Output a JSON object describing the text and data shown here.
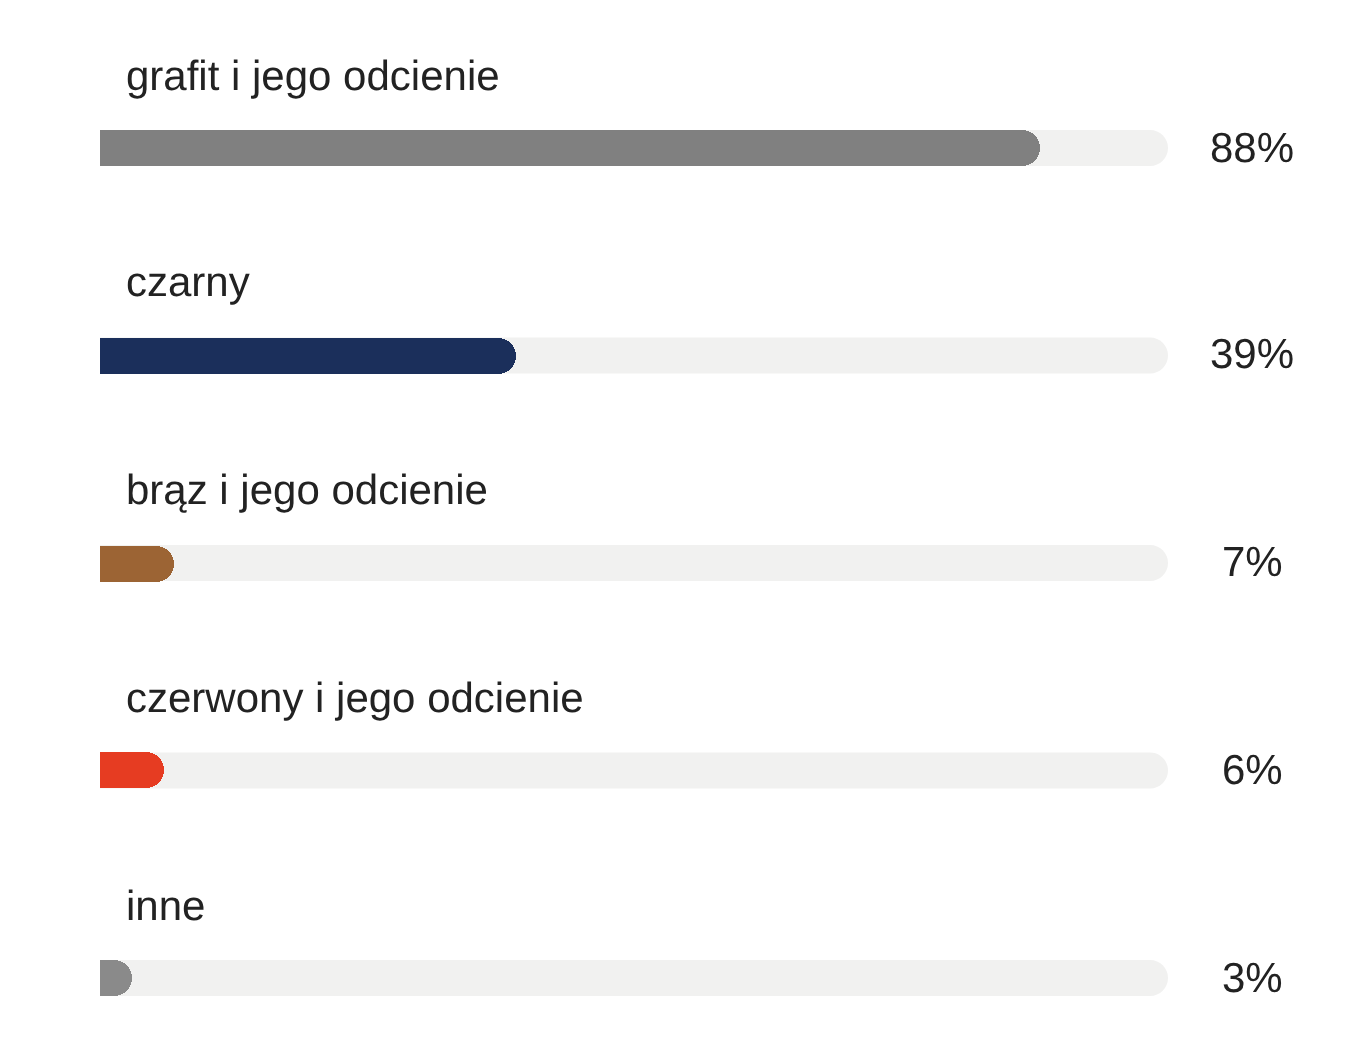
{
  "chart_data": {
    "type": "bar",
    "orientation": "horizontal",
    "categories": [
      "grafit i jego odcienie",
      "czarny",
      "brąz i jego odcienie",
      "czerwony i jego odcienie",
      "inne"
    ],
    "values": [
      88,
      39,
      7,
      6,
      3
    ],
    "colors": [
      "#808080",
      "#1b2f5b",
      "#9c6434",
      "#e63c22",
      "#8a8a8a"
    ],
    "xlim": [
      0,
      100
    ],
    "value_labels": [
      "88%",
      "39%",
      "7%",
      "6%",
      "3%"
    ],
    "tick_labels": false
  }
}
